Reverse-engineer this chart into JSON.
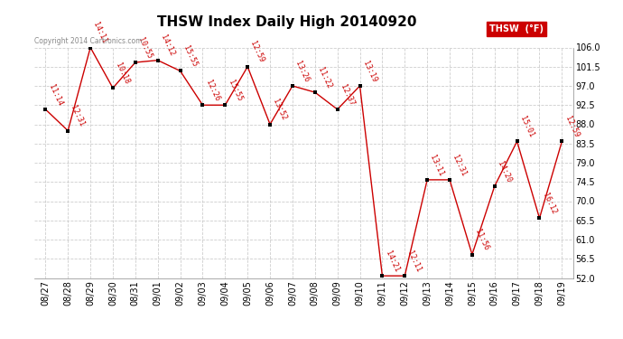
{
  "title": "THSW Index Daily High 20140920",
  "copyright": "Copyright 2014 Cartronics.com",
  "legend_label": "THSW  (°F)",
  "dates": [
    "08/27",
    "08/28",
    "08/29",
    "08/30",
    "08/31",
    "09/01",
    "09/02",
    "09/03",
    "09/04",
    "09/05",
    "09/06",
    "09/07",
    "09/08",
    "09/09",
    "09/10",
    "09/11",
    "09/12",
    "09/13",
    "09/14",
    "09/15",
    "09/16",
    "09/17",
    "09/18",
    "09/19"
  ],
  "values": [
    91.5,
    86.5,
    106.0,
    96.5,
    102.5,
    103.0,
    100.5,
    92.5,
    92.5,
    101.5,
    88.0,
    97.0,
    95.5,
    91.5,
    97.0,
    52.5,
    52.5,
    75.0,
    75.0,
    57.5,
    73.5,
    84.0,
    66.0,
    84.0
  ],
  "time_labels": [
    "11:14",
    "12:31",
    "14:11",
    "10:18",
    "10:55",
    "14:12",
    "15:55",
    "12:26",
    "15:55",
    "12:59",
    "13:52",
    "13:26",
    "11:22",
    "12:37",
    "13:19",
    "14:21",
    "12:11",
    "13:11",
    "12:31",
    "11:56",
    "14:20",
    "15:01",
    "16:12",
    "12:59"
  ],
  "ylim": [
    52.0,
    106.0
  ],
  "ytick_values": [
    52.0,
    56.5,
    61.0,
    65.5,
    70.0,
    74.5,
    79.0,
    83.5,
    88.0,
    92.5,
    97.0,
    101.5,
    106.0
  ],
  "ytick_labels": [
    "52.0",
    "56.5",
    "61.0",
    "65.5",
    "70.0",
    "74.5",
    "79.0",
    "83.5",
    "88.0",
    "92.5",
    "97.0",
    "101.5",
    "106.0"
  ],
  "line_color": "#cc0000",
  "marker_color": "#000000",
  "background_color": "#ffffff",
  "grid_color": "#c8c8c8",
  "title_fontsize": 11,
  "axis_fontsize": 7,
  "annot_fontsize": 6,
  "legend_bg": "#cc0000",
  "legend_fg": "#ffffff"
}
